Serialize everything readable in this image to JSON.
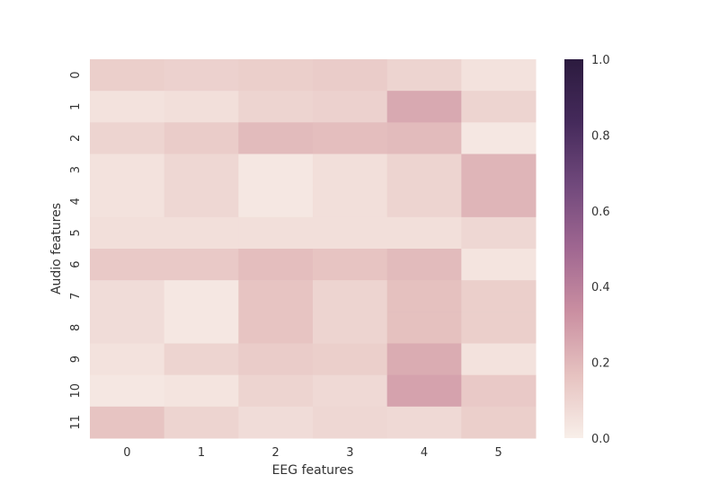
{
  "chart_data": {
    "type": "heatmap",
    "title": "",
    "xlabel": "EEG features",
    "ylabel": "Audio features",
    "x_categories": [
      "0",
      "1",
      "2",
      "3",
      "4",
      "5"
    ],
    "y_categories": [
      "0",
      "1",
      "2",
      "3",
      "4",
      "5",
      "6",
      "7",
      "8",
      "9",
      "10",
      "11"
    ],
    "values": [
      [
        0.12,
        0.11,
        0.12,
        0.13,
        0.1,
        0.05
      ],
      [
        0.05,
        0.06,
        0.1,
        0.11,
        0.25,
        0.1
      ],
      [
        0.1,
        0.13,
        0.19,
        0.18,
        0.19,
        0.03
      ],
      [
        0.05,
        0.09,
        0.03,
        0.06,
        0.1,
        0.21
      ],
      [
        0.05,
        0.09,
        0.03,
        0.06,
        0.1,
        0.21
      ],
      [
        0.06,
        0.06,
        0.06,
        0.06,
        0.06,
        0.09
      ],
      [
        0.14,
        0.14,
        0.18,
        0.16,
        0.19,
        0.04
      ],
      [
        0.07,
        0.03,
        0.16,
        0.1,
        0.17,
        0.12
      ],
      [
        0.07,
        0.03,
        0.16,
        0.1,
        0.17,
        0.12
      ],
      [
        0.05,
        0.1,
        0.13,
        0.12,
        0.24,
        0.05
      ],
      [
        0.03,
        0.04,
        0.1,
        0.08,
        0.27,
        0.14
      ],
      [
        0.16,
        0.1,
        0.07,
        0.09,
        0.08,
        0.12
      ]
    ],
    "colorbar": {
      "min": 0.0,
      "max": 1.0,
      "ticks": [
        "0.0",
        "0.2",
        "0.4",
        "0.6",
        "0.8",
        "1.0"
      ],
      "colormap_stops": [
        "#f8efe9",
        "#e6c2c0",
        "#ca8fa1",
        "#a06791",
        "#71497c",
        "#452a5b",
        "#2c1b3f"
      ]
    },
    "grid": false,
    "legend": "colorbar-right"
  }
}
